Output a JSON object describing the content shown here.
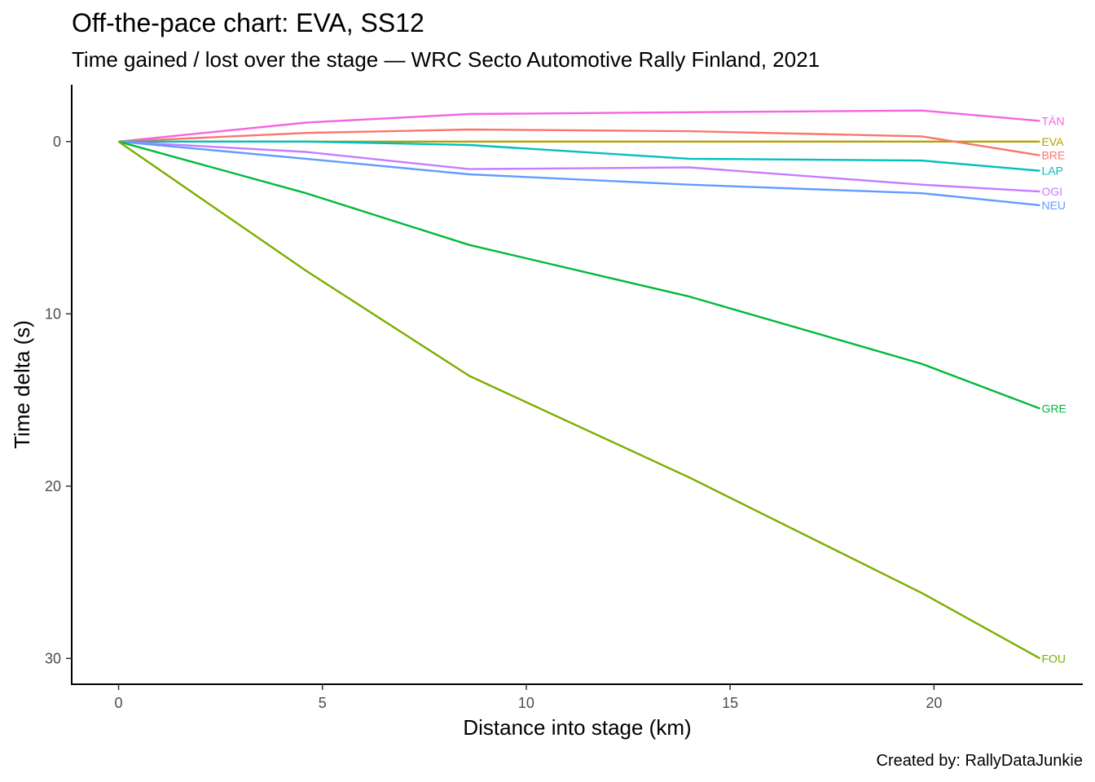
{
  "chart_data": {
    "type": "line",
    "title": "Off-the-pace chart: EVA, SS12",
    "subtitle": "Time gained / lost over the stage — WRC Secto Automotive Rally Finland, 2021",
    "caption": "Created by: RallyDataJunkie",
    "xlabel": "Distance into stage (km)",
    "ylabel": "Time delta (s)",
    "xlim": [
      -1.15,
      23.65
    ],
    "ylim": [
      -3.3,
      31.5
    ],
    "y_reversed": true,
    "x_ticks": [
      0,
      5,
      10,
      15,
      20
    ],
    "x_tick_labels": [
      "0",
      "5",
      "10",
      "15",
      "20"
    ],
    "y_ticks": [
      0,
      10,
      20,
      30
    ],
    "y_tick_labels": [
      "0",
      "10",
      "20",
      "30"
    ],
    "grid": false,
    "legend": "none",
    "series": [
      {
        "name": "TÄN",
        "color": "#F564E3",
        "x": [
          0,
          4.6,
          8.6,
          14.0,
          19.7,
          22.6
        ],
        "y": [
          0,
          -1.1,
          -1.6,
          -1.7,
          -1.8,
          -1.2
        ]
      },
      {
        "name": "EVA",
        "color": "#B79F00",
        "x": [
          0,
          4.6,
          8.6,
          14.0,
          19.7,
          22.6
        ],
        "y": [
          0,
          0,
          0,
          0,
          0,
          0
        ]
      },
      {
        "name": "BRE",
        "color": "#F8766D",
        "x": [
          0,
          4.6,
          8.6,
          14.0,
          19.7,
          22.6
        ],
        "y": [
          0,
          -0.5,
          -0.7,
          -0.6,
          -0.3,
          0.8
        ]
      },
      {
        "name": "LAP",
        "color": "#00BFC4",
        "x": [
          0,
          4.6,
          8.6,
          14.0,
          19.7,
          22.6
        ],
        "y": [
          0,
          0,
          0.2,
          1.0,
          1.1,
          1.7
        ]
      },
      {
        "name": "OGI",
        "color": "#C77CFF",
        "x": [
          0,
          4.6,
          8.6,
          14.0,
          19.7,
          22.6
        ],
        "y": [
          0,
          0.6,
          1.6,
          1.5,
          2.5,
          2.9
        ]
      },
      {
        "name": "NEU",
        "color": "#619CFF",
        "x": [
          0,
          4.6,
          8.6,
          14.0,
          19.7,
          22.6
        ],
        "y": [
          0,
          1.0,
          1.9,
          2.5,
          3.0,
          3.7
        ]
      },
      {
        "name": "GRE",
        "color": "#00BA38",
        "x": [
          0,
          4.6,
          8.6,
          14.0,
          19.7,
          22.6
        ],
        "y": [
          0,
          3.0,
          6.0,
          9.0,
          12.9,
          15.5
        ]
      },
      {
        "name": "FOU",
        "color": "#7CAE00",
        "x": [
          0,
          4.6,
          8.6,
          14.0,
          19.7,
          22.6
        ],
        "y": [
          0,
          7.5,
          13.6,
          19.5,
          26.2,
          30.0
        ]
      }
    ]
  }
}
